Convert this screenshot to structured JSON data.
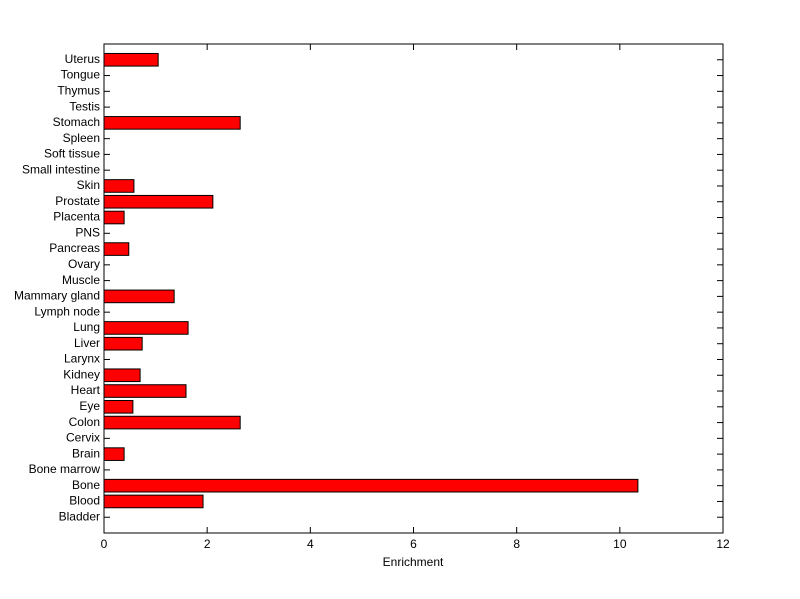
{
  "chart_data": {
    "type": "barh",
    "xlabel": "Enrichment",
    "categories": [
      "Bladder",
      "Blood",
      "Bone",
      "Bone marrow",
      "Brain",
      "Cervix",
      "Colon",
      "Eye",
      "Heart",
      "Kidney",
      "Larynx",
      "Liver",
      "Lung",
      "Lymph node",
      "Mammary gland",
      "Muscle",
      "Ovary",
      "Pancreas",
      "PNS",
      "Placenta",
      "Prostate",
      "Skin",
      "Small intestine",
      "Soft tissue",
      "Spleen",
      "Stomach",
      "Testis",
      "Thymus",
      "Tongue",
      "Uterus"
    ],
    "values": [
      0,
      1.92,
      10.35,
      0,
      0.39,
      0,
      2.64,
      0.56,
      1.59,
      0.7,
      0,
      0.74,
      1.63,
      0,
      1.36,
      0,
      0,
      0.48,
      0,
      0.39,
      2.11,
      0.58,
      0,
      0,
      0,
      2.64,
      0,
      0,
      0,
      1.05
    ],
    "color": "#ff0000",
    "xlim": [
      0,
      12
    ],
    "xticks": [
      0,
      2,
      4,
      6,
      8,
      10,
      12
    ],
    "grid": false
  }
}
